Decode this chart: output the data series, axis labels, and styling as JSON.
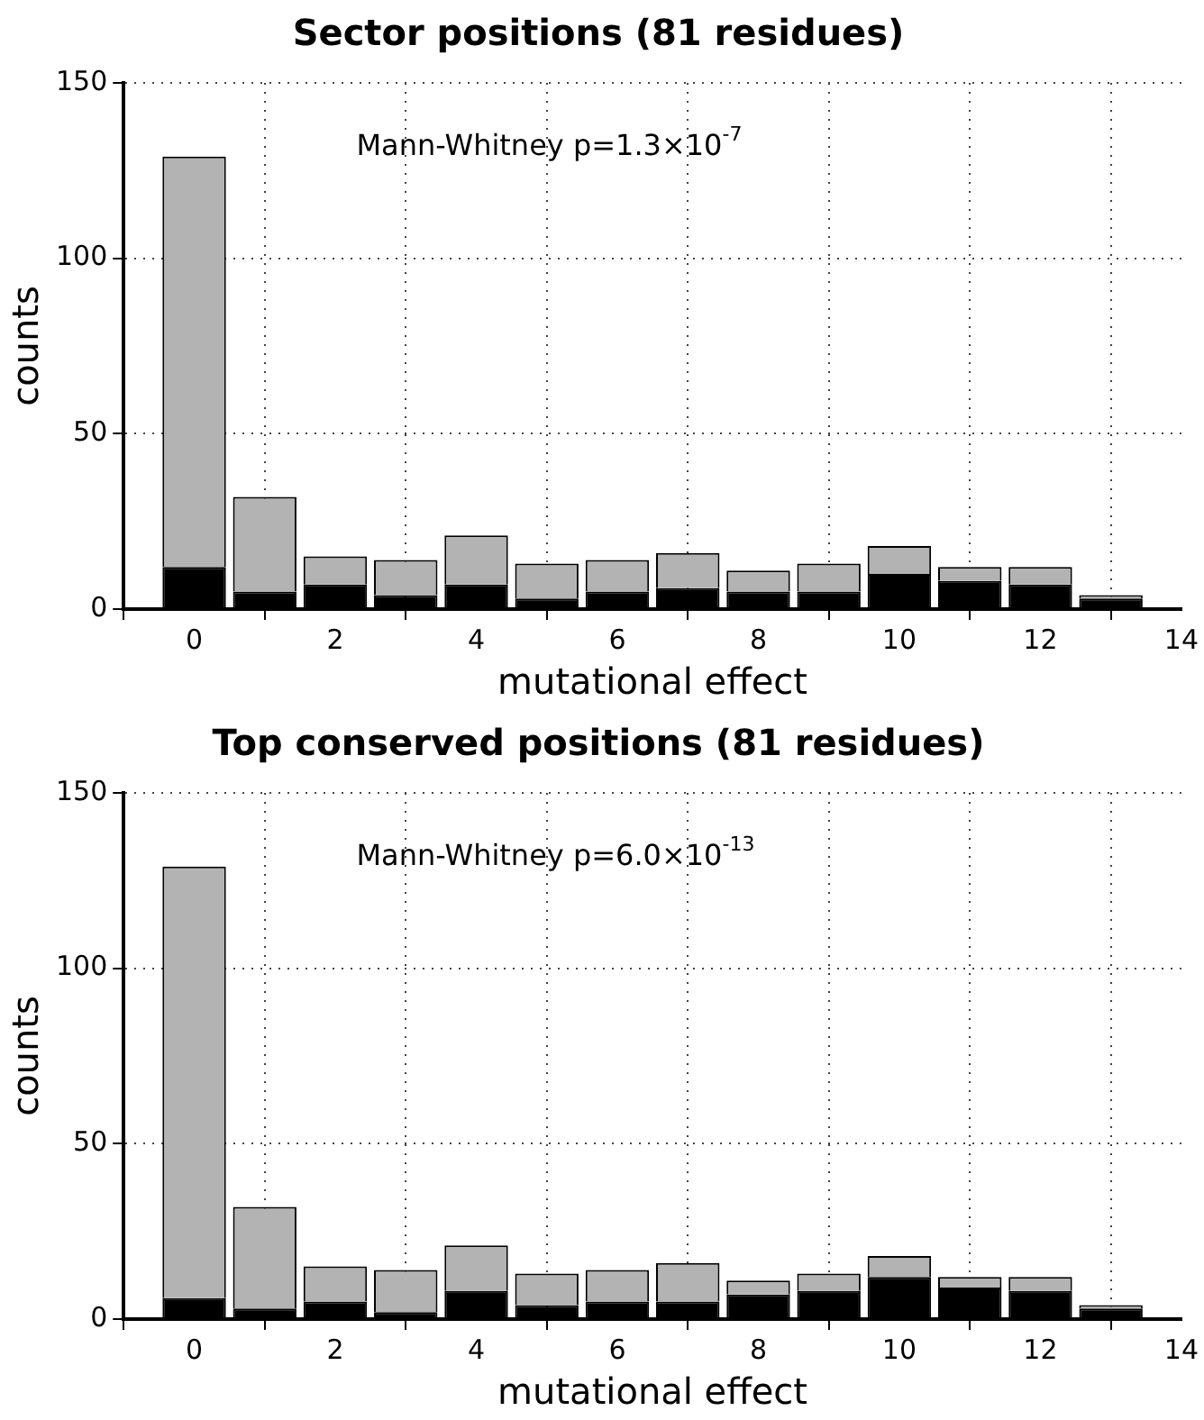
{
  "chart_data": [
    {
      "type": "bar",
      "title": "Sector positions (81 residues)",
      "xlabel": "mutational effect",
      "ylabel": "counts",
      "annotations": [
        "Mann-Whitney p=1.3×10$^{-7}$"
      ],
      "x": [
        0,
        1,
        2,
        3,
        4,
        5,
        6,
        7,
        8,
        9,
        10,
        11,
        12,
        13
      ],
      "stacked": true,
      "series": [
        {
          "color": "#000000",
          "values": [
            12,
            5,
            7,
            4,
            7,
            3,
            5,
            6,
            5,
            5,
            10,
            8,
            7,
            3
          ]
        },
        {
          "color": "#b3b3b3",
          "values": [
            117,
            27,
            8,
            10,
            14,
            10,
            9,
            10,
            6,
            8,
            8,
            4,
            5,
            1
          ]
        }
      ],
      "xlim": [
        -1,
        14
      ],
      "xticks": [
        0,
        2,
        4,
        6,
        8,
        10,
        12,
        14
      ],
      "ylim": [
        0,
        150
      ],
      "yticks": [
        0,
        50,
        100,
        150
      ],
      "grid": true,
      "legend": false
    },
    {
      "type": "bar",
      "title": "Top conserved positions (81 residues)",
      "xlabel": "mutational effect",
      "ylabel": "counts",
      "annotations": [
        "Mann-Whitney p=6.0×10$^{-13}$"
      ],
      "x": [
        0,
        1,
        2,
        3,
        4,
        5,
        6,
        7,
        8,
        9,
        10,
        11,
        12,
        13
      ],
      "stacked": true,
      "series": [
        {
          "color": "#000000",
          "values": [
            6,
            3,
            5,
            2,
            8,
            4,
            5,
            5,
            7,
            8,
            12,
            9,
            8,
            3
          ]
        },
        {
          "color": "#b3b3b3",
          "values": [
            123,
            29,
            10,
            12,
            13,
            9,
            9,
            11,
            4,
            5,
            6,
            3,
            4,
            1
          ]
        }
      ],
      "xlim": [
        -1,
        14
      ],
      "xticks": [
        0,
        2,
        4,
        6,
        8,
        10,
        12,
        14
      ],
      "ylim": [
        0,
        150
      ],
      "yticks": [
        0,
        50,
        100,
        150
      ],
      "grid": true,
      "legend": false
    }
  ]
}
